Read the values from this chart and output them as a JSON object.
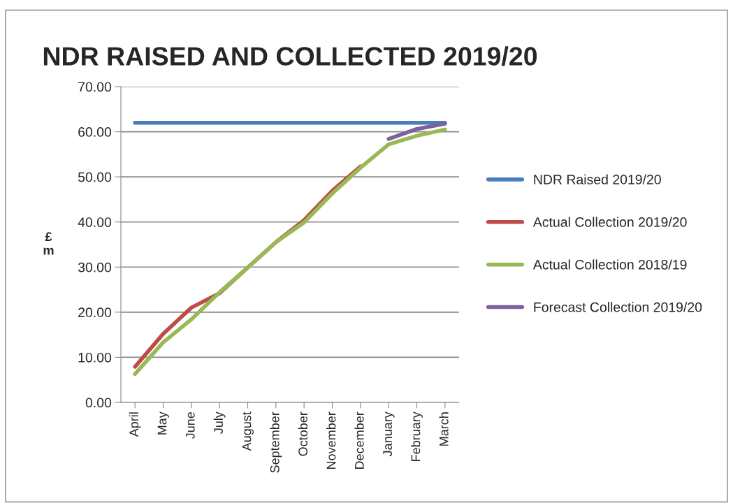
{
  "chart_data": {
    "type": "line",
    "title": "NDR RAISED AND COLLECTED 2019/20",
    "ylabel": "£\nm",
    "categories": [
      "April",
      "May",
      "June",
      "July",
      "August",
      "September",
      "October",
      "November",
      "December",
      "January",
      "February",
      "March"
    ],
    "series": [
      {
        "name": "NDR Raised 2019/20",
        "color": "#4a7ebb",
        "values": [
          62,
          62,
          62,
          62,
          62,
          62,
          62,
          62,
          62,
          62,
          62,
          62
        ]
      },
      {
        "name": "Actual Collection 2019/20",
        "color": "#be4b48",
        "values": [
          7.9,
          15.2,
          21.0,
          24.2,
          29.9,
          35.5,
          40.4,
          46.9,
          52.3,
          null,
          null,
          null
        ]
      },
      {
        "name": "Actual Collection 2018/19",
        "color": "#98b954",
        "values": [
          6.3,
          13.3,
          18.4,
          24.4,
          29.9,
          35.5,
          39.9,
          46.3,
          52.0,
          57.2,
          59.1,
          60.5
        ]
      },
      {
        "name": "Forecast Collection 2019/20",
        "color": "#7d60a0",
        "values": [
          null,
          null,
          null,
          null,
          null,
          null,
          null,
          null,
          null,
          58.4,
          60.6,
          61.8
        ]
      }
    ],
    "ylim": [
      0,
      70
    ],
    "yticks": [
      {
        "value": 0,
        "label": "0.00"
      },
      {
        "value": 10,
        "label": "10.00"
      },
      {
        "value": 20,
        "label": "20.00"
      },
      {
        "value": 30,
        "label": "30.00"
      },
      {
        "value": 40,
        "label": "40.00"
      },
      {
        "value": 50,
        "label": "50.00"
      },
      {
        "value": 60,
        "label": "60.00"
      },
      {
        "value": 70,
        "label": "70.00"
      }
    ],
    "grid": "y",
    "legend": "right",
    "line_style": "solid",
    "marker": "none"
  }
}
